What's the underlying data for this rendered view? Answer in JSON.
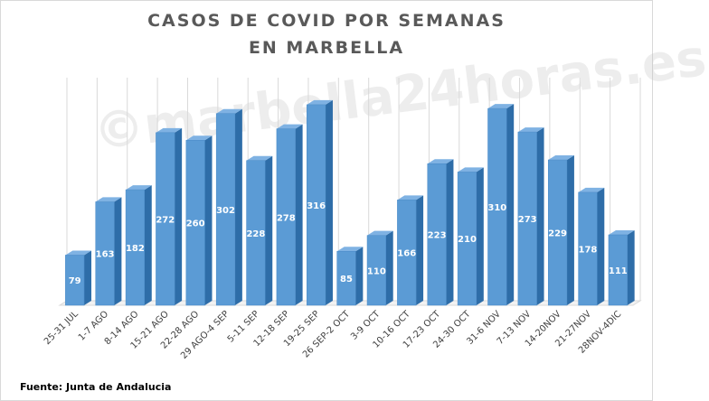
{
  "header": {
    "title_line1": "CASOS DE COVID POR SEMANAS",
    "title_line2": "EN MARBELLA"
  },
  "watermark": "©marbella24horas.es",
  "source": "Fuente: Junta de Andalucia",
  "colors": {
    "bar_front": "#5b9bd5",
    "bar_side": "#2e6da8",
    "bar_top": "#7fb2e3",
    "label": "#ffffff",
    "grid": "#d9d9d9",
    "title": "#595959"
  },
  "chart_data": {
    "type": "bar",
    "title": "CASOS DE COVID POR SEMANAS EN MARBELLA",
    "categories": [
      "25-31 JUL",
      "1-7 AGO",
      "8-14 AGO",
      "15-21 AGO",
      "22-28 AGO",
      "29 AGO-4 SEP",
      "5-11 SEP",
      "12-18 SEP",
      "19-25 SEP",
      "26 SEP-2 OCT",
      "3-9 OCT",
      "10-16 OCT",
      "17-23 OCT",
      "24-30 OCT",
      "31-6 NOV",
      "7-13 NOV",
      "14-20NOV",
      "21-27NOV",
      "28NOV-4DIC"
    ],
    "values": [
      79,
      163,
      182,
      272,
      260,
      302,
      228,
      278,
      316,
      85,
      110,
      166,
      223,
      210,
      310,
      273,
      229,
      178,
      111
    ],
    "data_labels": true,
    "ylim": [
      0,
      350
    ],
    "grid": "vertical",
    "style": "3d-column"
  }
}
